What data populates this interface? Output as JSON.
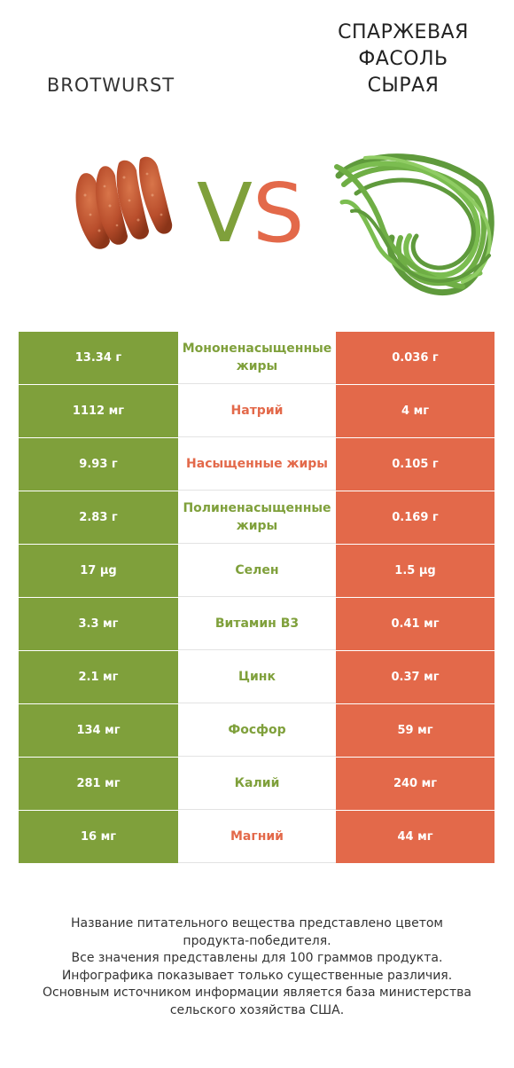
{
  "header": {
    "left_food": "BROTWURST",
    "right_food": [
      "СПАРЖЕВАЯ",
      "ФАСОЛЬ",
      "СЫРАЯ"
    ],
    "vs_v": "V",
    "vs_s": "S"
  },
  "colors": {
    "left_accent": "#7fa03b",
    "right_accent": "#e3694a"
  },
  "rows": [
    {
      "left": "13.34 г",
      "nutrient": "Мононенасыщенные жиры",
      "right": "0.036 г",
      "winner": "left"
    },
    {
      "left": "1112 мг",
      "nutrient": "Натрий",
      "right": "4 мг",
      "winner": "right"
    },
    {
      "left": "9.93 г",
      "nutrient": "Насыщенные жиры",
      "right": "0.105 г",
      "winner": "right"
    },
    {
      "left": "2.83 г",
      "nutrient": "Полиненасыщенные жиры",
      "right": "0.169 г",
      "winner": "left"
    },
    {
      "left": "17 µg",
      "nutrient": "Селен",
      "right": "1.5 µg",
      "winner": "left"
    },
    {
      "left": "3.3 мг",
      "nutrient": "Витамин B3",
      "right": "0.41 мг",
      "winner": "left"
    },
    {
      "left": "2.1 мг",
      "nutrient": "Цинк",
      "right": "0.37 мг",
      "winner": "left"
    },
    {
      "left": "134 мг",
      "nutrient": "Фосфор",
      "right": "59 мг",
      "winner": "left"
    },
    {
      "left": "281 мг",
      "nutrient": "Калий",
      "right": "240 мг",
      "winner": "left"
    },
    {
      "left": "16 мг",
      "nutrient": "Магний",
      "right": "44 мг",
      "winner": "right"
    }
  ],
  "footer": [
    "Название питательного вещества представлено цветом",
    "продукта-победителя.",
    "Все значения представлены для 100 граммов продукта.",
    "Инфографика показывает только существенные различия.",
    "Основным источником информации является база министерства",
    "сельского хозяйства США."
  ]
}
